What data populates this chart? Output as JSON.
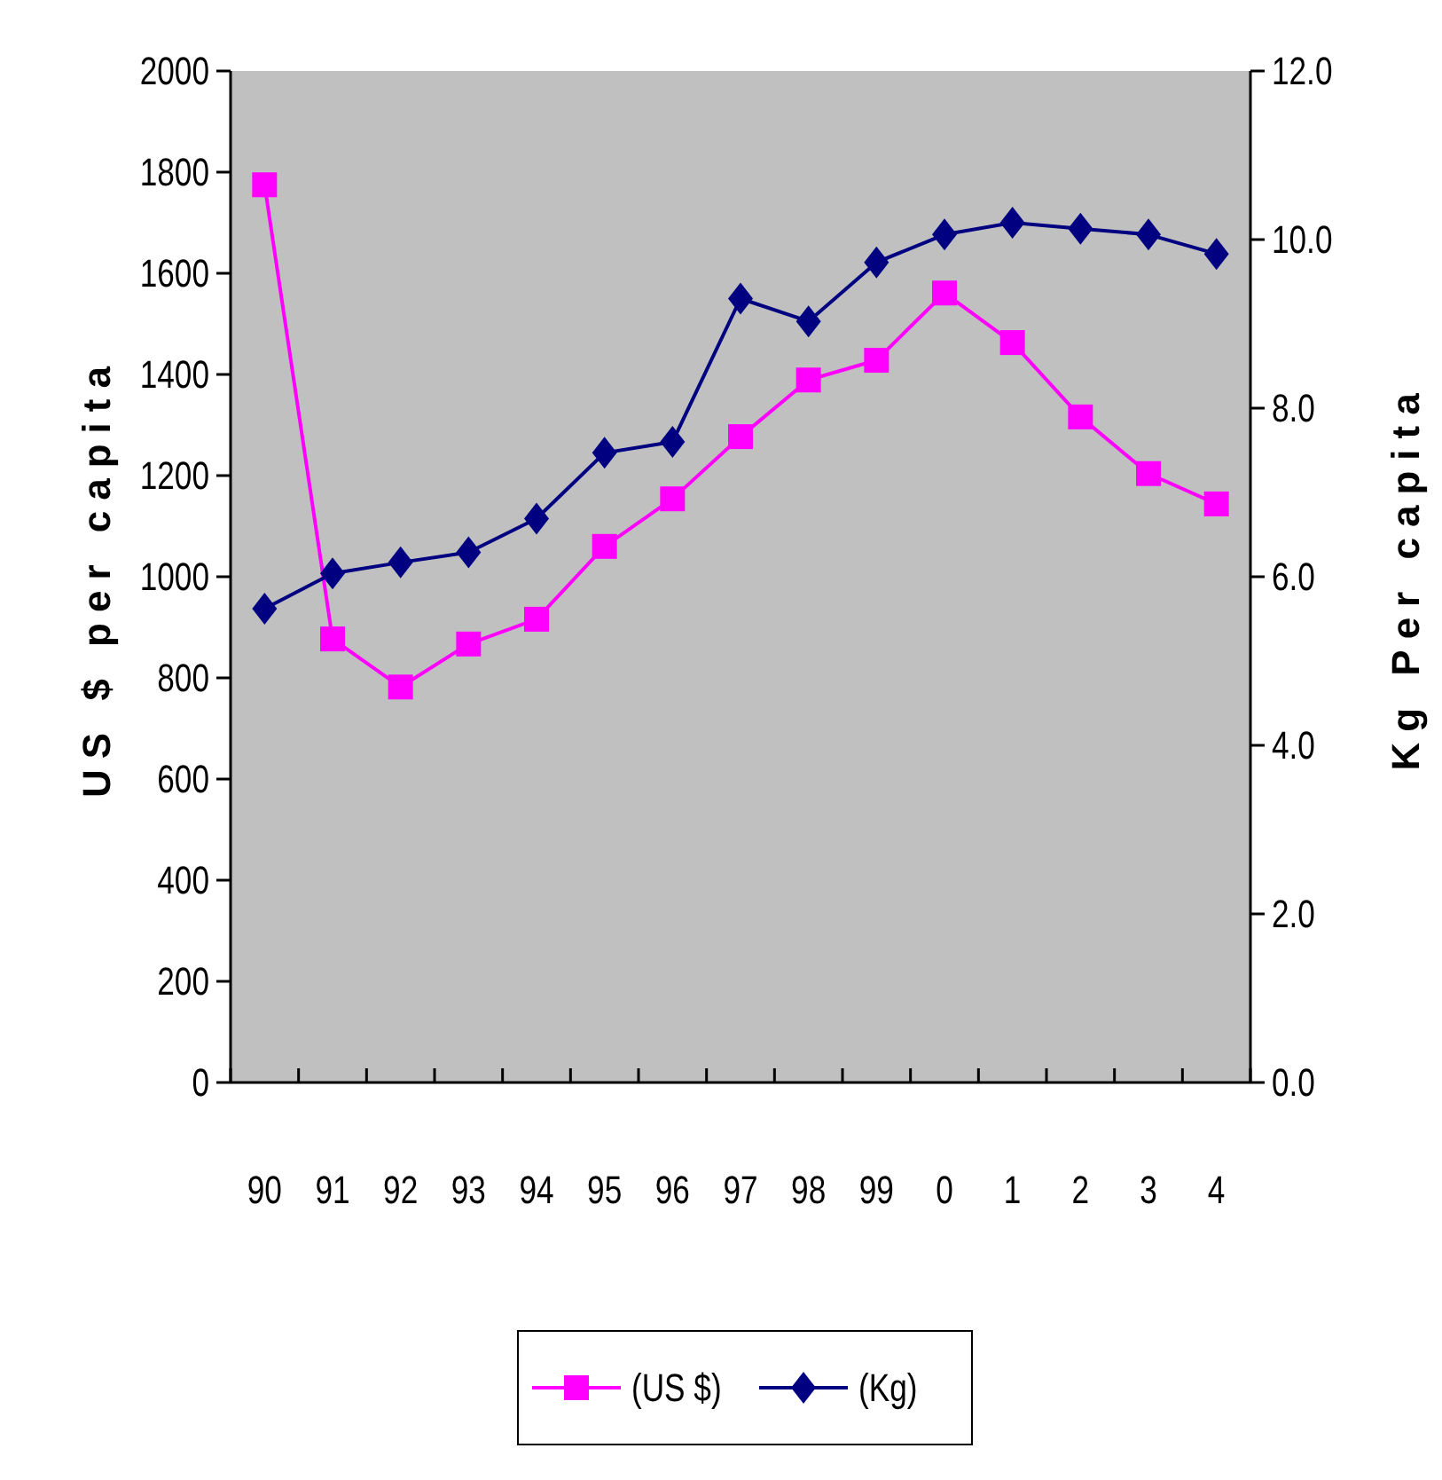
{
  "chart_data": {
    "type": "line",
    "ylabel": "US $ per capita",
    "y2label": "Kg Per capita",
    "categories": [
      "90",
      "91",
      "92",
      "93",
      "94",
      "95",
      "96",
      "97",
      "98",
      "99",
      "0",
      "1",
      "2",
      "3",
      "4"
    ],
    "series": [
      {
        "name": "(US $)",
        "color": "#ff00ff",
        "marker": "square",
        "values": [
          1775,
          877,
          782,
          867,
          916,
          1060,
          1154,
          1277,
          1389,
          1428,
          1561,
          1463,
          1316,
          1204,
          1144
        ]
      },
      {
        "name": "(Kg)",
        "color": "#000080",
        "marker": "diamond",
        "axis": "y2",
        "values": [
          5.62,
          6.04,
          6.17,
          6.29,
          6.69,
          7.47,
          7.6,
          9.3,
          9.03,
          9.73,
          10.06,
          10.2,
          10.13,
          10.06,
          9.83
        ]
      }
    ],
    "ylim": [
      0,
      2000
    ],
    "yticks": [
      0,
      200,
      400,
      600,
      800,
      1000,
      1200,
      1400,
      1600,
      1800,
      2000
    ],
    "y2lim": [
      0,
      12
    ],
    "y2ticks": [
      {
        "value": 0,
        "label": "0.0"
      },
      {
        "value": 2,
        "label": "2.0"
      },
      {
        "value": 4,
        "label": "4.0"
      },
      {
        "value": 6,
        "label": "6.0"
      },
      {
        "value": 8,
        "label": "8.0"
      },
      {
        "value": 10,
        "label": "10.0"
      },
      {
        "value": 12,
        "label": "12.0"
      }
    ],
    "grid": false,
    "legend": "bottom",
    "line_style": "solid"
  }
}
